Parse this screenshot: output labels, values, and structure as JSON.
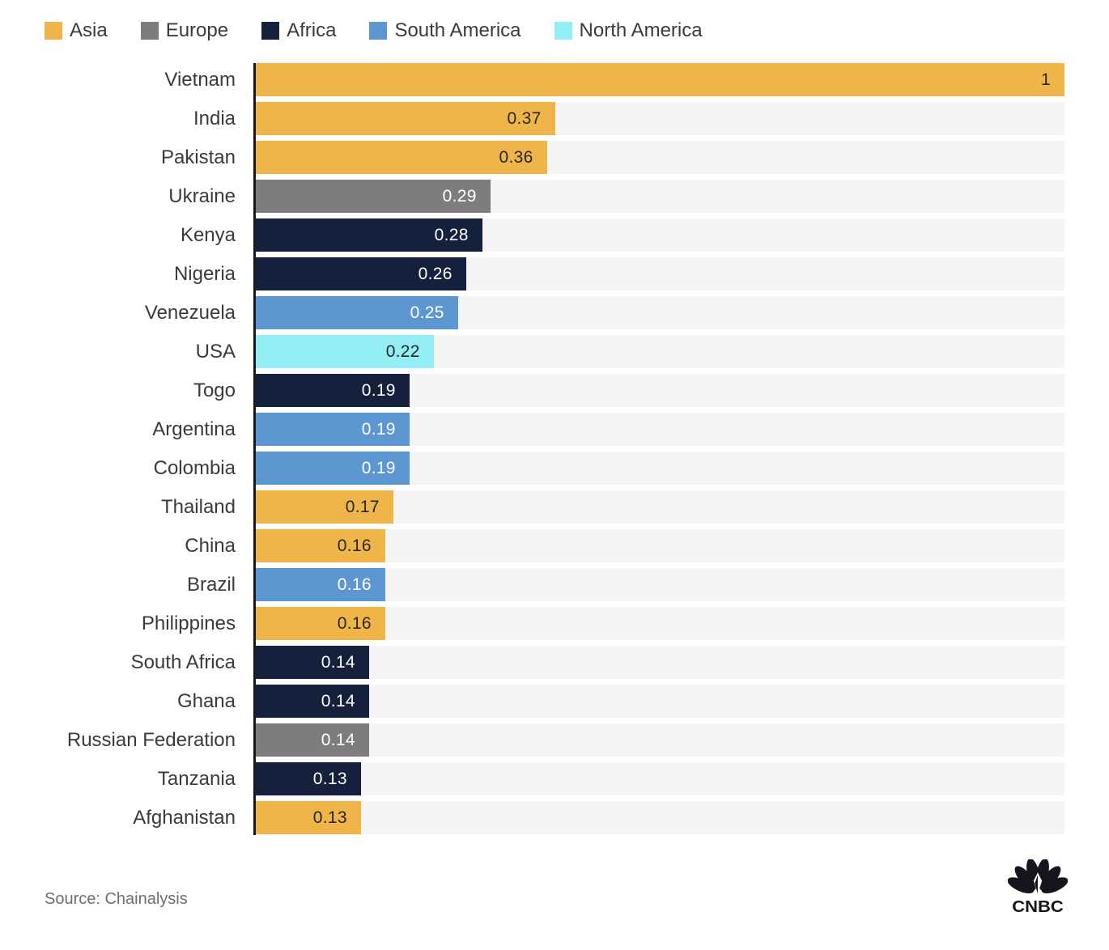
{
  "legend": {
    "items": [
      {
        "label": "Asia",
        "color": "#F0B548",
        "value_text_color": "#262626"
      },
      {
        "label": "Europe",
        "color": "#7D7D7D",
        "value_text_color": "#FFFFFF"
      },
      {
        "label": "Africa",
        "color": "#14203C",
        "value_text_color": "#FFFFFF"
      },
      {
        "label": "South America",
        "color": "#5D97D1",
        "value_text_color": "#FFFFFF"
      },
      {
        "label": "North America",
        "color": "#93EEF6",
        "value_text_color": "#262626"
      }
    ]
  },
  "chart_data": {
    "type": "bar",
    "orientation": "horizontal",
    "title": "",
    "xlabel": "",
    "ylabel": "",
    "xlim": [
      0,
      1
    ],
    "grid": false,
    "legend_position": "top-left",
    "track_color": "#F4F4F4",
    "value_labels_inside_bar_end": true,
    "bars": [
      {
        "country": "Vietnam",
        "value": 1,
        "display": "1",
        "region": "Asia"
      },
      {
        "country": "India",
        "value": 0.37,
        "display": "0.37",
        "region": "Asia"
      },
      {
        "country": "Pakistan",
        "value": 0.36,
        "display": "0.36",
        "region": "Asia"
      },
      {
        "country": "Ukraine",
        "value": 0.29,
        "display": "0.29",
        "region": "Europe"
      },
      {
        "country": "Kenya",
        "value": 0.28,
        "display": "0.28",
        "region": "Africa"
      },
      {
        "country": "Nigeria",
        "value": 0.26,
        "display": "0.26",
        "region": "Africa"
      },
      {
        "country": "Venezuela",
        "value": 0.25,
        "display": "0.25",
        "region": "South America"
      },
      {
        "country": "USA",
        "value": 0.22,
        "display": "0.22",
        "region": "North America"
      },
      {
        "country": "Togo",
        "value": 0.19,
        "display": "0.19",
        "region": "Africa"
      },
      {
        "country": "Argentina",
        "value": 0.19,
        "display": "0.19",
        "region": "South America"
      },
      {
        "country": "Colombia",
        "value": 0.19,
        "display": "0.19",
        "region": "South America"
      },
      {
        "country": "Thailand",
        "value": 0.17,
        "display": "0.17",
        "region": "Asia"
      },
      {
        "country": "China",
        "value": 0.16,
        "display": "0.16",
        "region": "Asia"
      },
      {
        "country": "Brazil",
        "value": 0.16,
        "display": "0.16",
        "region": "South America"
      },
      {
        "country": "Philippines",
        "value": 0.16,
        "display": "0.16",
        "region": "Asia"
      },
      {
        "country": "South Africa",
        "value": 0.14,
        "display": "0.14",
        "region": "Africa"
      },
      {
        "country": "Ghana",
        "value": 0.14,
        "display": "0.14",
        "region": "Africa"
      },
      {
        "country": "Russian Federation",
        "value": 0.14,
        "display": "0.14",
        "region": "Europe"
      },
      {
        "country": "Tanzania",
        "value": 0.13,
        "display": "0.13",
        "region": "Africa"
      },
      {
        "country": "Afghanistan",
        "value": 0.13,
        "display": "0.13",
        "region": "Asia"
      }
    ]
  },
  "footer": {
    "source": "Source: Chainalysis",
    "logo_text": "CNBC",
    "logo_color": "#15151d"
  }
}
